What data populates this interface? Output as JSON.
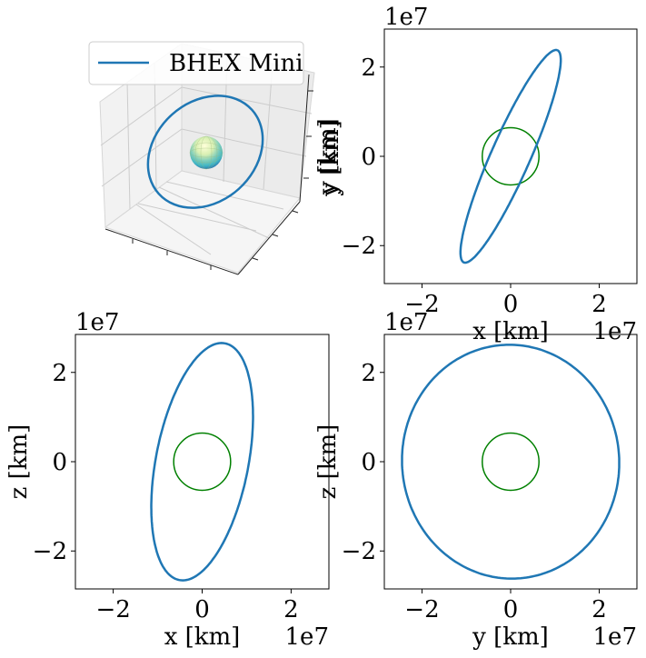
{
  "chart_data": [
    {
      "type": "line3d",
      "panel": "top-left",
      "series": [
        {
          "name": "BHEX Mini",
          "color": "#1f77b4"
        }
      ],
      "legend": "top-left",
      "grid": true,
      "sphere_colormap": "YlGnBu"
    },
    {
      "type": "line",
      "panel": "top-right",
      "xlabel": "x [km]",
      "ylabel": "y [km]",
      "x_offset": "1e7",
      "y_offset": "1e7",
      "xlim": [
        -2.85,
        2.85
      ],
      "ylim": [
        -2.85,
        2.85
      ],
      "xticks": [
        -2,
        0,
        2
      ],
      "yticks": [
        -2,
        0,
        2
      ],
      "xtick_labels": [
        "−2",
        "0",
        "2"
      ],
      "ytick_labels": [
        "−2",
        "0",
        "2"
      ],
      "orbit": {
        "color": "#1f77b4",
        "semi_major": 2.6,
        "semi_minor": 0.44,
        "rotation_deg": 66
      },
      "earth": {
        "color": "#008000",
        "radius": 0.64
      }
    },
    {
      "type": "line",
      "panel": "bottom-left",
      "xlabel": "x [km]",
      "ylabel": "z [km]",
      "x_offset": "1e7",
      "y_offset": "1e7",
      "xlim": [
        -2.85,
        2.85
      ],
      "ylim": [
        -2.85,
        2.85
      ],
      "xticks": [
        -2,
        0,
        2
      ],
      "yticks": [
        -2,
        0,
        2
      ],
      "xtick_labels": [
        "−2",
        "0",
        "2"
      ],
      "ytick_labels": [
        "−2",
        "0",
        "2"
      ],
      "orbit": {
        "color": "#1f77b4",
        "semi_major": 2.7,
        "semi_minor": 1.04,
        "rotation_deg": 79
      },
      "earth": {
        "color": "#008000",
        "radius": 0.64
      }
    },
    {
      "type": "line",
      "panel": "bottom-right",
      "xlabel": "y [km]",
      "ylabel": "z [km]",
      "x_offset": "1e7",
      "y_offset": "1e7",
      "xlim": [
        -2.85,
        2.85
      ],
      "ylim": [
        -2.85,
        2.85
      ],
      "xticks": [
        -2,
        0,
        2
      ],
      "yticks": [
        -2,
        0,
        2
      ],
      "xtick_labels": [
        "−2",
        "0",
        "2"
      ],
      "ytick_labels": [
        "−2",
        "0",
        "2"
      ],
      "orbit": {
        "color": "#1f77b4",
        "semi_major": 2.62,
        "semi_minor": 2.45,
        "rotation_deg": 95
      },
      "earth": {
        "color": "#008000",
        "radius": 0.64
      }
    }
  ]
}
